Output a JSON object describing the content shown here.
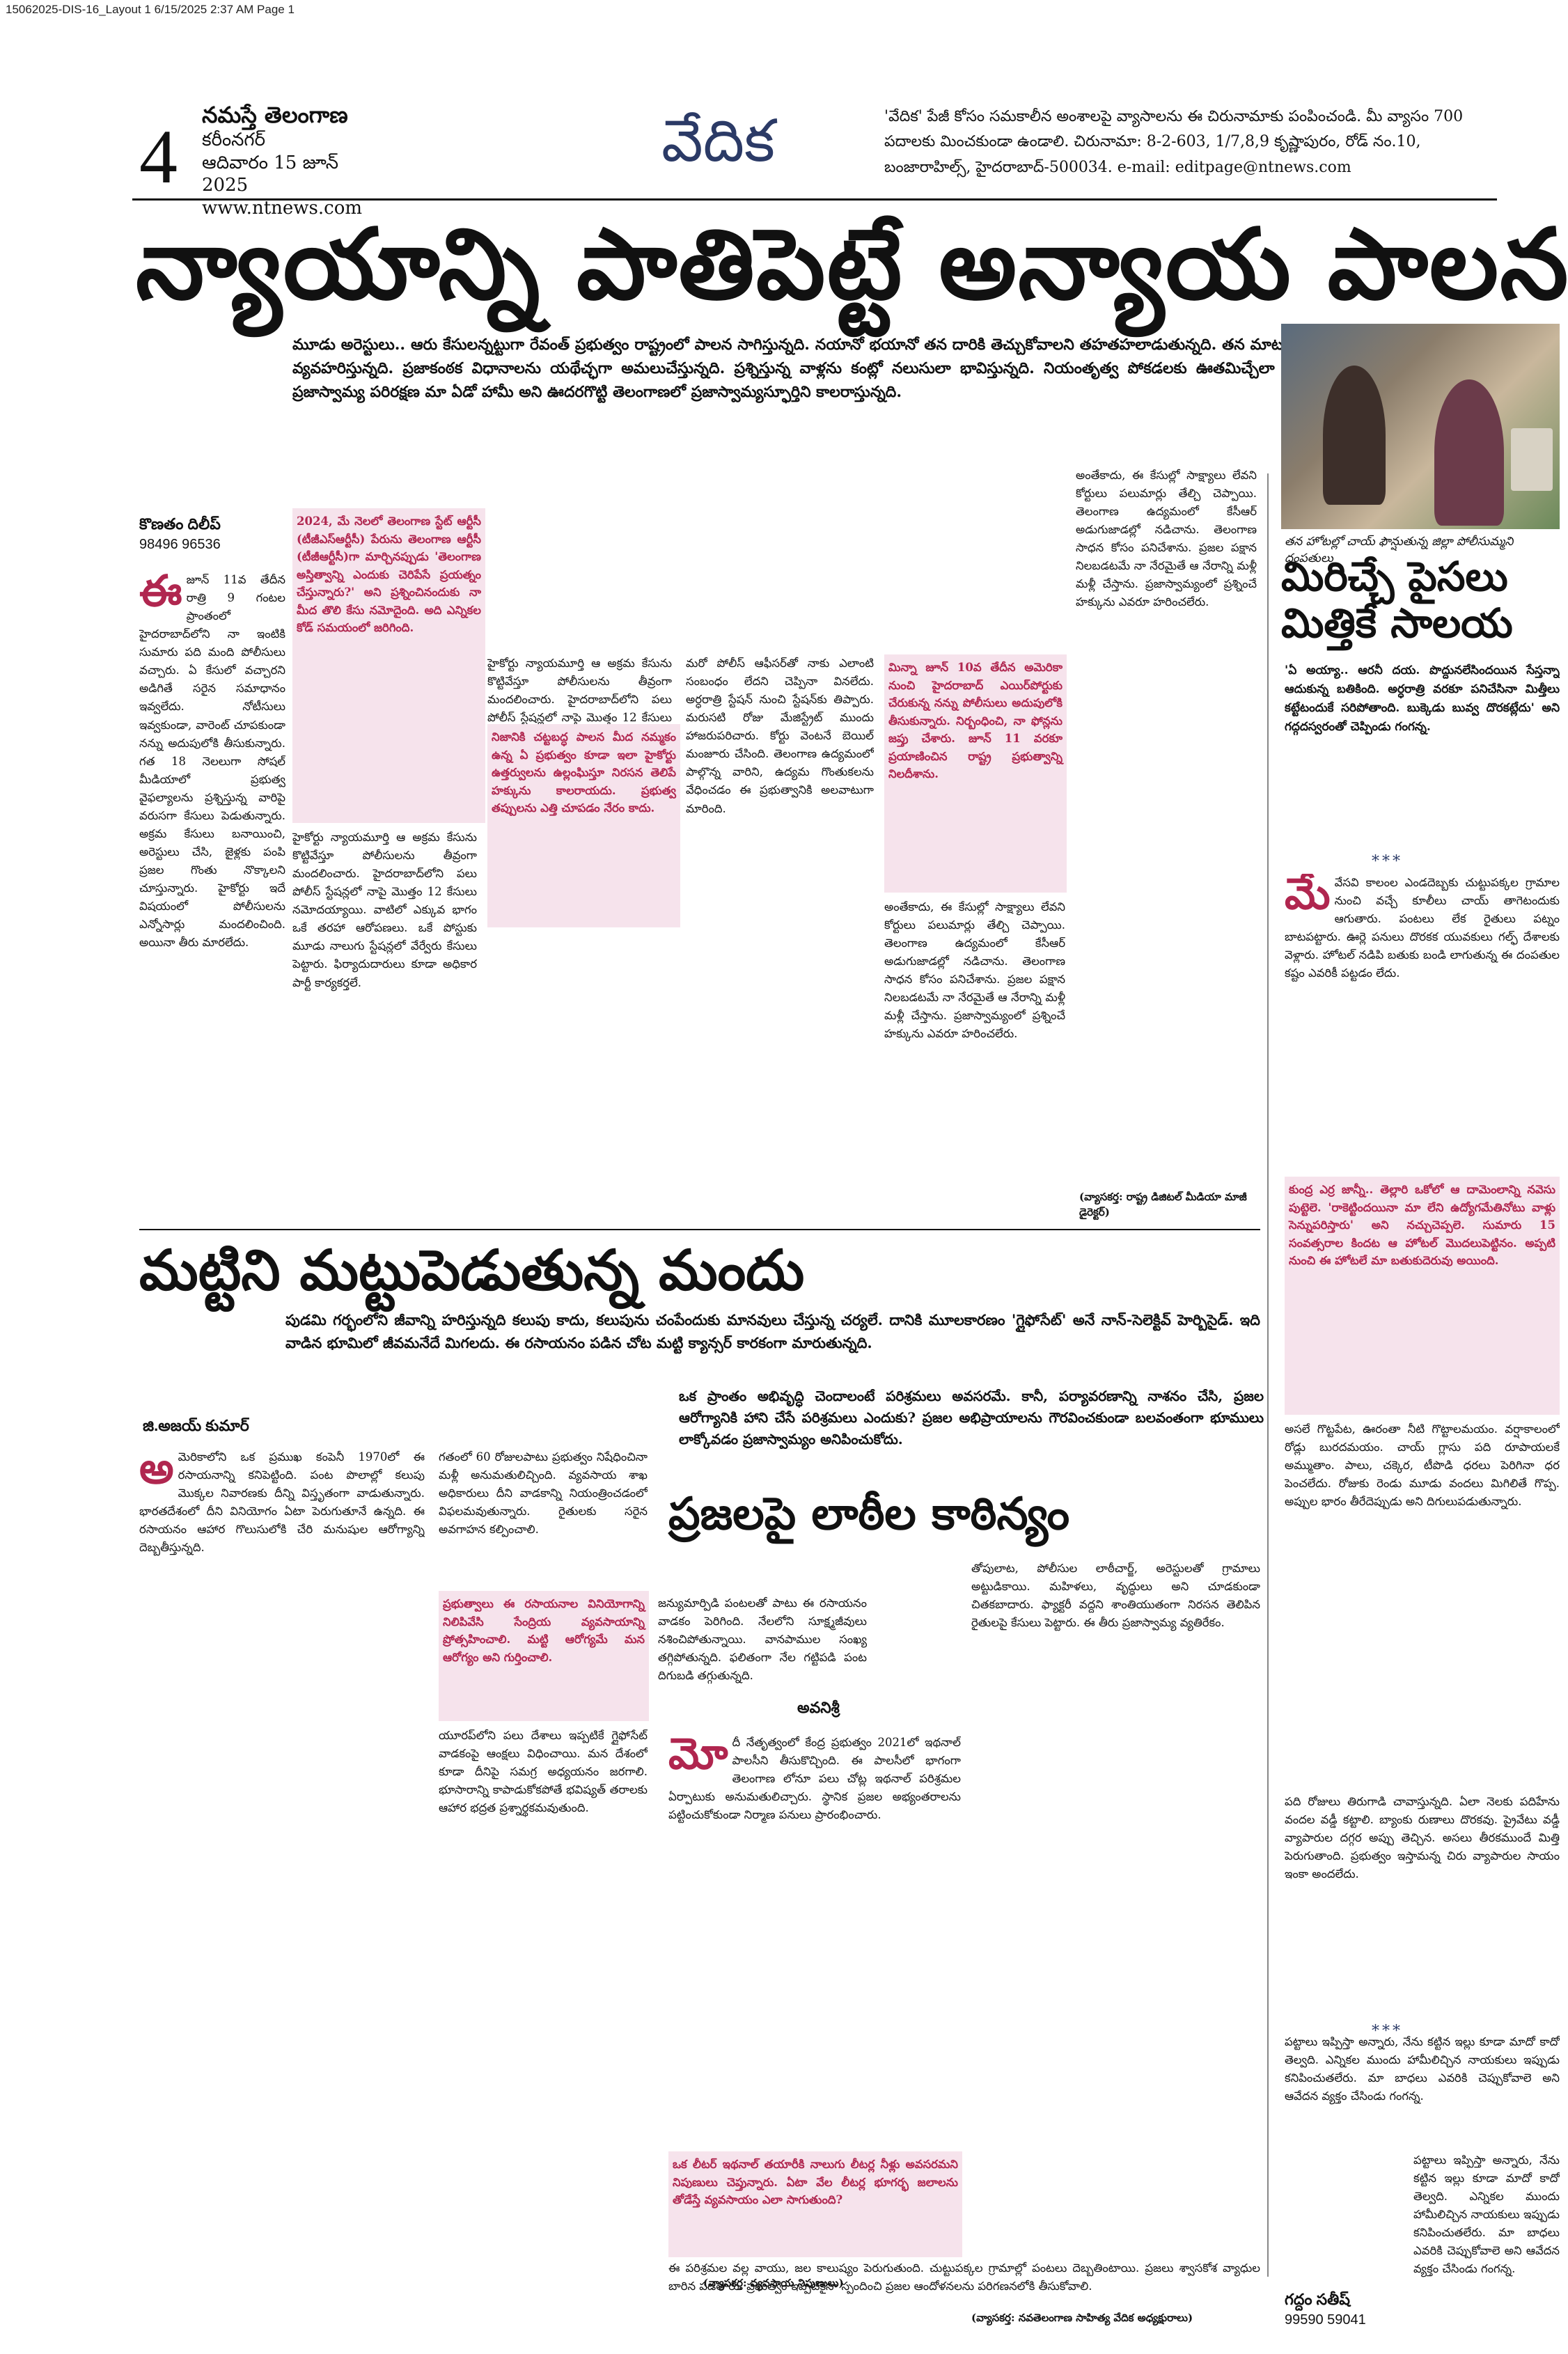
{
  "slug": "15062025-DIS-16_Layout 1  6/15/2025  2:37 AM  Page 1",
  "masthead": {
    "page_number": "4",
    "paper": "నమస్తే తెలంగాణ",
    "edition": "కరీంనగర్",
    "date": "ఆదివారం 15 జూన్ 2025",
    "website": "www.ntnews.com",
    "section": "వేదిక"
  },
  "edit_box": "'వేదిక' పేజీ కోసం సమకాలీన అంశాలపై వ్యాసాలను ఈ చిరునామాకు పంపించండి. మీ వ్యాసం 700 పదాలకు మించకుండా ఉండాలి. చిరునామా: 8-2-603, 1/7,8,9 కృష్ణాపురం, రోడ్ నం.10, బంజారాహిల్స్, హైదరాబాద్-500034. e-mail: editpage@ntnews.com",
  "lead": {
    "headline": "న్యాయాన్ని పాతిపెట్టే అన్యాయ పాలన!",
    "intro": "మూడు అరెస్టులు.. ఆరు కేసులన్నట్టుగా రేవంత్ ప్రభుత్వం రాష్ట్రంలో పాలన సాగిస్తున్నది. నయానో భయానో తన దారికి తెచ్చుకోవాలని తహతహలాడుతున్నది. తన మాటకు ఎదురు చెప్పేవారి పట్ల కర్కశంగా వ్యవహరిస్తున్నది. ప్రజాకంఠక విధానాలను యథేచ్ఛగా అమలుచేస్తున్నది. ప్రశ్నిస్తున్న వాళ్లను కంట్లో నలుసులా భావిస్తున్నది. నియంతృత్వ పోకడలకు ఊతమిచ్చేలా వారిపై ఉక్కుపాదం మోపుతున్నది. ప్రజాస్వామ్య పరిరక్షణ మా ఏడో హామీ అని ఊదరగొట్టి తెలంగాణలో ప్రజాస్వామ్యస్ఫూర్తిని కాలరాస్తున్నది.",
    "author": "కొణతం దిలీప్",
    "author_phone": "98496 96536",
    "col1": "జూన్ 11వ తేదీన రాత్రి 9 గంటల ప్రాంతంలో హైదరాబాద్‌లోని నా ఇంటికి సుమారు పది మంది పోలీసులు వచ్చారు. ఏ కేసులో వచ్చారని అడిగితే సరైన సమాధానం ఇవ్వలేదు. నోటీసులు ఇవ్వకుండా, వారెంట్ చూపకుండా నన్ను అదుపులోకి తీసుకున్నారు. గత 18 నెలలుగా సోషల్ మీడియాలో ప్రభుత్వ వైఫల్యాలను ప్రశ్నిస్తున్న వారిపై వరుసగా కేసులు పెడుతున్నారు. అక్రమ కేసులు బనాయించి, అరెస్టులు చేసి, జైళ్లకు పంపి ప్రజల గొంతు నొక్కాలని చూస్తున్నారు. హైకోర్టు ఇదే విషయంలో పోలీసులను ఎన్నోసార్లు మందలించింది. అయినా తీరు మారలేదు.",
    "pull1": "2024, మే నెలలో తెలంగాణ స్టేట్ ఆర్టీసీ (టీజీఎస్ఆర్టీసీ) పేరును తెలంగాణ ఆర్టీసీ (టీజీఆర్టీసీ)గా మార్చినప్పుడు 'తెలంగాణ అస్తిత్వాన్ని ఎందుకు చెరిపేసే ప్రయత్నం చేస్తున్నారు?' అని ప్రశ్నించినందుకు నా మీద తొలి కేసు నమోదైంది. అది ఎన్నికల కోడ్ సమయంలో జరిగింది.",
    "col2": "హైకోర్టు న్యాయమూర్తి ఆ అక్రమ కేసును కొట్టివేస్తూ పోలీసులను తీవ్రంగా మందలించారు. హైదరాబాద్‌లోని పలు పోలీస్ స్టేషన్లలో నాపై మొత్తం 12 కేసులు నమోదయ్యాయి. వాటిలో ఎక్కువ భాగం ఒకే తరహా ఆరోపణలు. ఒకే పోస్టుకు మూడు నాలుగు స్టేషన్లలో వేర్వేరు కేసులు పెట్టారు. ఫిర్యాదుదారులు కూడా అధికార పార్టీ కార్యకర్తలే.",
    "pull2": "నిజానికి చట్టబద్ధ పాలన మీద నమ్మకం ఉన్న ఏ ప్రభుత్వం కూడా ఇలా హైకోర్టు ఉత్తర్వులను ఉల్లంఘిస్తూ నిరసన తెలిపే హక్కును కాలరాయదు. ప్రభుత్వ తప్పులను ఎత్తి చూపడం నేరం కాదు.",
    "col3": "మరో పోలీస్ ఆఫీసర్‌తో నాకు ఎలాంటి సంబంధం లేదని చెప్పినా వినలేదు. అర్ధరాత్రి స్టేషన్ నుంచి స్టేషన్‌కు తిప్పారు. మరుసటి రోజు మేజిస్ట్రేట్ ముందు హాజరుపరిచారు. కోర్టు వెంటనే బెయిల్ మంజూరు చేసింది. తెలంగాణ ఉద్యమంలో పాల్గొన్న వారిని, ఉద్యమ గొంతుకలను వేధించడం ఈ ప్రభుత్వానికి అలవాటుగా మారింది.",
    "pull3": "మిన్నా జూన్ 10వ తేదీన అమెరికా నుంచి హైదరాబాద్ ఎయిర్‌పోర్టుకు చేరుకున్న నన్ను పోలీసులు అదుపులోకి తీసుకున్నారు. నిర్బంధించి, నా ఫోన్లను జప్తు చేశారు. జూన్ 11 వరకూ ప్రయాణించిన రాష్ట్ర ప్రభుత్వాన్ని నిలదీశాను.",
    "col4": "అంతేకాదు, ఈ కేసుల్లో సాక్ష్యాలు లేవని కోర్టులు పలుమార్లు తేల్చి చెప్పాయి. తెలంగాణ ఉద్యమంలో కేసీఆర్ అడుగుజాడల్లో నడిచాను. తెలంగాణ సాధన కోసం పనిచేశాను. ప్రజల పక్షాన నిలబడటమే నా నేరమైతే ఆ నేరాన్ని మళ్లీ మళ్లీ చేస్తాను. ప్రజాస్వామ్యంలో ప్రశ్నించే హక్కును ఎవరూ హరించలేరు.",
    "author_note": "(వ్యాసకర్త: రాష్ట్ర డిజిటల్ మీడియా మాజీ డైరెక్టర్)"
  },
  "right_story": {
    "photo_caption": "తన హోటల్లో చాయ్ ఫౌన్షుతున్న జిల్లా పోలీసుమ్మని దంపతులు",
    "headline_line1": "మిరిచ్చే పైసలు",
    "headline_line2": "మిత్తికే సాలయ",
    "intro": "'ఏ అయ్యా.. ఆరనీ దయ. పొద్దునలేసిందయిన సేస్తన్నా ఆదుకున్న బతికింది. అర్ధరాత్రి వరకూ పనిచేసినా మిత్తీలు కట్టేటందుకే సరిపోతాంది. బుక్కెడు బువ్వ దొరకట్లేదు' అని గద్గదస్వరంతో చెప్పిండు గంగన్న.",
    "body1": "వేసవి కాలంల ఎండదెబ్బకు చుట్టుపక్కల గ్రామాల నుంచి వచ్చే కూలీలు చాయ్ తాగెటందుకు ఆగుతారు. పంటలు లేక రైతులు పట్నం బాటపట్టారు. ఊర్లె పనులు దొరకక యువకులు గల్ఫ్ దేశాలకు వెళ్లారు. హోటల్ నడిపి బతుకు బండి లాగుతున్న ఈ దంపతుల కష్టం ఎవరికీ పట్టడం లేదు.",
    "pull": "కుంద్ర ఎర్ర జాన్నీ.. తెల్లారి ఒకోలో ఆ దామెంలాన్ని నవెసు పుట్టెలె. 'రాకెట్టిందయినా మా లేని ఉద్యోగమేతినోటు వాళ్లు సెన్నుపరిస్తారు' అని నచ్చుచెప్పలె. సుమారు 15 సంవత్సరాల కిందట ఆ హోటల్ మొదలుపెట్టినం. అప్పటి నుంచి ఈ హోటలే మా బతుకుదెరువు అయింది.",
    "body2": "అసలే గొట్టపేట, ఊరంతా నీటి గొట్టాలమయం. వర్షాకాలంలో రోడ్లు బురదమయం. చాయ్ గ్లాసు పది రూపాయలకే అమ్ముతాం. పాలు, చక్కెర, టీపొడి ధరలు పెరిగినా ధర పెంచలేదు. రోజుకు రెండు మూడు వందలు మిగిలితే గొప్ప. అప్పుల భారం తీరేదెప్పుడు అని దిగులుపడుతున్నారు.",
    "body3": "పది రోజులు తిరుగాడి చావాస్తున్నది. ఏలా నెలకు పదిహేను వందల వడ్డీ కట్టాలి. బ్యాంకు రుణాలు దొరకవు. ప్రైవేటు వడ్డీ వ్యాపారుల దగ్గర అప్పు తెచ్చిన. అసలు తీరకముందే మిత్తి పెరుగుతాంది. ప్రభుత్వం ఇస్తామన్న చిరు వ్యాపారుల సాయం ఇంకా అందలేదు.",
    "body4": "పట్టాలు ఇప్పిస్తా అన్నారు, నేను కట్టిన ఇల్లు కూడా మాదో కాదో తెల్వది. ఎన్నికల ముందు హామీలిచ్చిన నాయకులు ఇప్పుడు కనిపించుతలేరు. మా బాధలు ఎవరికి చెప్పుకోవాలె అని ఆవేదన వ్యక్తం చేసిండు గంగన్న.",
    "author": "గద్దం సతీష్",
    "author_phone": "99590 59041"
  },
  "soil_story": {
    "headline": "మట్టిని మట్టుపెడుతున్న మందు",
    "intro": "పుడమి గర్భంలోని జీవాన్ని హరిస్తున్నది కలుపు కాదు, కలుపును చంపేందుకు మానవులు చేస్తున్న చర్యలే. దానికి మూలకారణం 'గ్లైఫోసేట్' అనే నాన్-సెలెక్టివ్ హెర్బిసైడ్. ఇది వాడిన భూమిలో జీవమనేదే మిగలదు. ఈ రసాయనం పడిన చోట మట్టి క్యాన్సర్ కారకంగా మారుతున్నది.",
    "author": "జి.అజయ్ కుమార్",
    "col1": "మెరికాలోని ఒక ప్రముఖ కంపెనీ 1970లో ఈ రసాయనాన్ని కనిపెట్టింది. పంట పొలాల్లో కలుపు మొక్కల నివారణకు దీన్ని విస్తృతంగా వాడుతున్నారు. భారతదేశంలో దీని వినియోగం ఏటా పెరుగుతూనే ఉన్నది. ఈ రసాయనం ఆహార గొలుసులోకి చేరి మనుషుల ఆరోగ్యాన్ని దెబ్బతీస్తున్నది.",
    "col2": "గతంలో 60 రోజులపాటు ప్రభుత్వం నిషేధించినా మళ్లీ అనుమతులిచ్చింది. వ్యవసాయ శాఖ అధికారులు దీని వాడకాన్ని నియంత్రించడంలో విఫలమవుతున్నారు. రైతులకు సరైన అవగాహన కల్పించాలి.",
    "pull": "ప్రభుత్వాలు ఈ రసాయనాల వినియోగాన్ని నిలిపివేసి సేంద్రియ వ్యవసాయాన్ని ప్రోత్సహించాలి. మట్టి ఆరోగ్యమే మన ఆరోగ్యం అని గుర్తించాలి.",
    "col3": "యూరప్‌లోని పలు దేశాలు ఇప్పటికే గ్లైఫోసేట్ వాడకంపై ఆంక్షలు విధించాయి. మన దేశంలో కూడా దీనిపై సమగ్ర అధ్యయనం జరగాలి. భూసారాన్ని కాపాడుకోకపోతే భవిష్యత్ తరాలకు ఆహార భద్రత ప్రశ్నార్థకమవుతుంది.",
    "col4": "జన్యుమార్పిడి పంటలతో పాటు ఈ రసాయనం వాడకం పెరిగింది. నేలలోని సూక్ష్మజీవులు నశించిపోతున్నాయి. వానపాముల సంఖ్య తగ్గిపోతున్నది. ఫలితంగా నేల గట్టిపడి పంట దిగుబడి తగ్గుతున్నది.",
    "author_note": "(వ్యాసకర్త: వ్యవసాయ నిపుణులు)"
  },
  "lathi_story": {
    "intro": "ఒక ప్రాంతం అభివృద్ధి చెందాలంటే పరిశ్రమలు అవసరమే. కానీ, పర్యావరణాన్ని నాశనం చేసి, ప్రజల ఆరోగ్యానికి హాని చేసే పరిశ్రమలు ఎందుకు? ప్రజల అభిప్రాయాలను గౌరవించకుండా బలవంతంగా భూములు లాక్కోవడం ప్రజాస్వామ్యం అనిపించుకోదు.",
    "headline": "ప్రజలపై లాఠీల కాఠిన్యం",
    "author": "అవనిశ్రీ",
    "col1": "దీ నేతృత్వంలో కేంద్ర ప్రభుత్వం 2021లో ఇథనాల్ పాలసీని తీసుకొచ్చింది. ఈ పాలసీలో భాగంగా తెలంగాణ లోనూ పలు చోట్ల ఇథనాల్ పరిశ్రమల ఏర్పాటుకు అనుమతులిచ్చారు. స్థానిక ప్రజల అభ్యంతరాలను పట్టించుకోకుండా నిర్మాణ పనులు ప్రారంభించారు.",
    "pull": "ఒక లీటర్ ఇథనాల్ తయారీకి నాలుగు లీటర్ల నీళ్లు అవసరమని నిపుణులు చెప్తున్నారు. ఏటా వేల లీటర్ల భూగర్భ జలాలను తోడేస్తే వ్యవసాయం ఎలా సాగుతుంది?",
    "col2": "తోపులాట, పోలీసుల లాఠీచార్జ్, అరెస్టులతో గ్రామాలు అట్టుడికాయి. మహిళలు, వృద్ధులు అని చూడకుండా చితకబాదారు. ఫ్యాక్టరీ వద్దని శాంతియుతంగా నిరసన తెలిపిన రైతులపై కేసులు పెట్టారు. ఈ తీరు ప్రజాస్వామ్య వ్యతిరేకం.",
    "col3": "ఈ పరిశ్రమల వల్ల వాయు, జల కాలుష్యం పెరుగుతుంది. చుట్టుపక్కల గ్రామాల్లో పంటలు దెబ్బతింటాయి. ప్రజలు శ్వాసకోశ వ్యాధుల బారిన పడతారు. ప్రభుత్వం ఇప్పటికైనా స్పందించి ప్రజల ఆందోళనలను పరిగణనలోకి తీసుకోవాలి.",
    "author_note": "(వ్యాసకర్త: నవతెలంగాణ సాహిత్య వేదిక అధ్యక్షురాలు)"
  }
}
